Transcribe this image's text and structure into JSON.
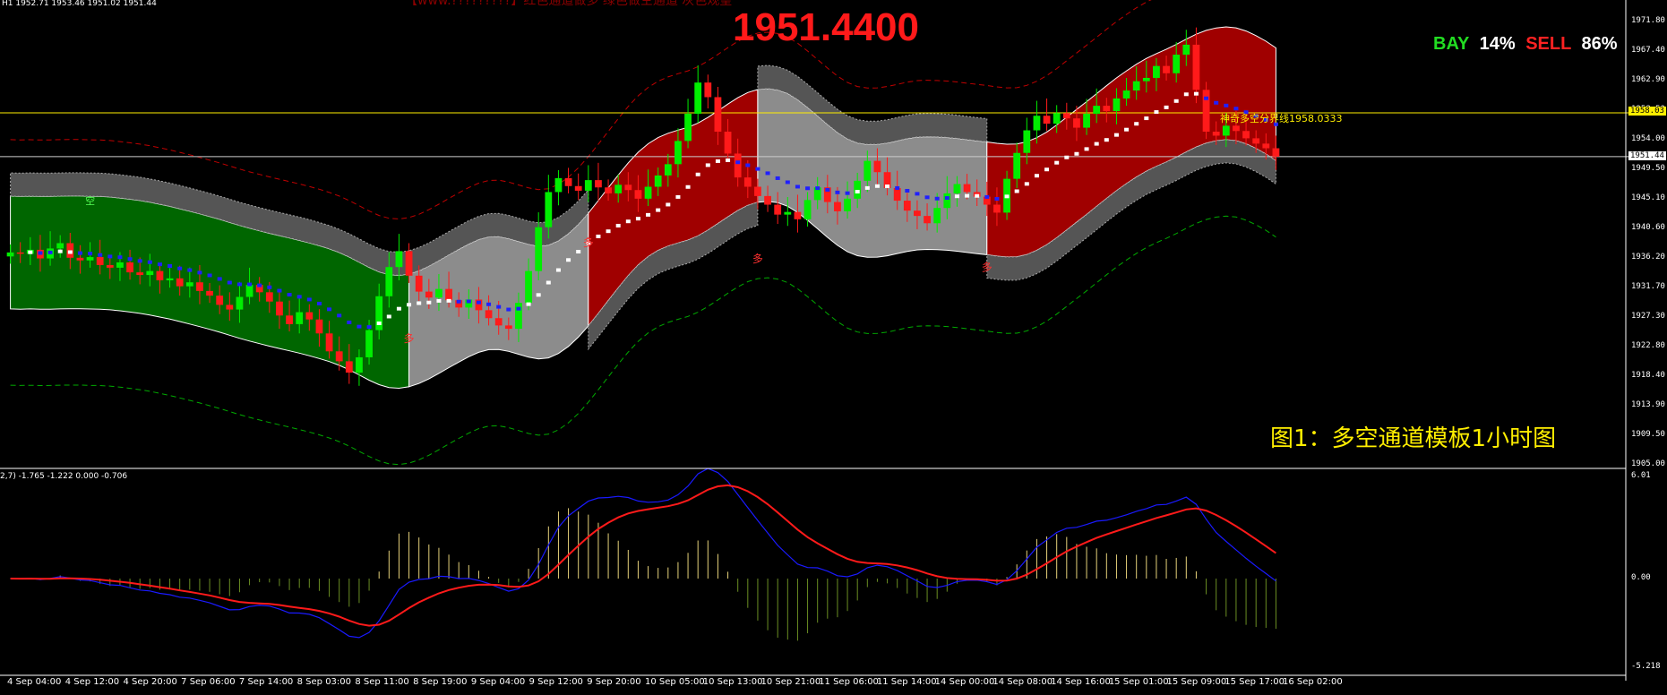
{
  "header": {
    "symbol_ohlc": "H1  1952.71 1953.46 1951.02 1951.44",
    "current_price": "1951.4400",
    "top_note": "【www.?????????】红色通道做多  绿色做空通道 灰色观望"
  },
  "sentiment": {
    "buy_label": "BAY",
    "buy_pct": "14%",
    "sell_label": "SELL",
    "sell_pct": "86%",
    "buy_color": "#22dd22",
    "sell_color": "#ff2222"
  },
  "caption": "图1：多空通道模板1小时图",
  "boundary_label": "神奇多空分界线1958.0333",
  "marks": {
    "long": "多",
    "short": "空"
  },
  "price_axis": {
    "ticks": [
      "1971.80",
      "1967.40",
      "1962.90",
      "1958.50",
      "1954.00",
      "1949.50",
      "1945.10",
      "1940.60",
      "1936.20",
      "1931.70",
      "1927.30",
      "1922.80",
      "1918.40",
      "1913.90",
      "1909.50",
      "1905.00"
    ],
    "highlight_yellow": "1958.03",
    "highlight_white": "1951.44"
  },
  "indicator": {
    "header": "2,7) -1.765 -1.222 0.000 -0.706",
    "axis_ticks": [
      "6.01",
      "0.00",
      "-5.218"
    ]
  },
  "time_axis": [
    "4 Sep 04:00",
    "4 Sep 12:00",
    "4 Sep 20:00",
    "7 Sep 06:00",
    "7 Sep 14:00",
    "8 Sep 03:00",
    "8 Sep 11:00",
    "8 Sep 19:00",
    "9 Sep 04:00",
    "9 Sep 12:00",
    "9 Sep 20:00",
    "10 Sep 05:00",
    "10 Sep 13:00",
    "10 Sep 21:00",
    "11 Sep 06:00",
    "11 Sep 14:00",
    "14 Sep 00:00",
    "14 Sep 08:00",
    "14 Sep 16:00",
    "15 Sep 01:00",
    "15 Sep 09:00",
    "15 Sep 17:00",
    "16 Sep 02:00"
  ],
  "colors": {
    "bull_channel": "#a00000",
    "bear_channel": "#006600",
    "neutral_channel": "#8c8c8c",
    "up_candle": "#00ee00",
    "down_candle": "#ff1a1a",
    "macd_signal": "#ff1a1a",
    "macd_line": "#1a1aff",
    "hist_pos": "#e6d27a",
    "hist_neg": "#6b8e23"
  },
  "chart_data": {
    "type": "candlestick",
    "timeframe": "H1",
    "ylim": [
      1905.0,
      1971.8
    ],
    "close_series": [
      1937.0,
      1936.8,
      1937.4,
      1936.1,
      1937.6,
      1938.4,
      1936.2,
      1935.8,
      1936.3,
      1935.1,
      1934.7,
      1935.5,
      1934.0,
      1933.6,
      1934.2,
      1932.8,
      1933.1,
      1931.9,
      1932.5,
      1931.2,
      1930.5,
      1929.1,
      1928.4,
      1930.3,
      1932.1,
      1931.0,
      1929.6,
      1927.5,
      1926.2,
      1928.0,
      1926.9,
      1924.8,
      1922.1,
      1920.6,
      1918.9,
      1921.2,
      1925.3,
      1930.4,
      1934.8,
      1937.2,
      1933.5,
      1931.1,
      1930.2,
      1931.5,
      1929.8,
      1928.7,
      1929.9,
      1928.3,
      1927.1,
      1926.0,
      1925.5,
      1929.4,
      1934.2,
      1940.8,
      1946.1,
      1948.2,
      1947.0,
      1946.3,
      1947.9,
      1946.8,
      1945.9,
      1947.2,
      1946.4,
      1945.1,
      1946.9,
      1948.6,
      1950.3,
      1953.8,
      1957.9,
      1962.6,
      1960.4,
      1955.2,
      1951.9,
      1948.3,
      1946.9,
      1945.5,
      1944.2,
      1942.7,
      1943.1,
      1942.0,
      1944.9,
      1946.8,
      1944.6,
      1943.2,
      1945.1,
      1947.8,
      1950.8,
      1949.1,
      1946.7,
      1944.8,
      1943.3,
      1942.5,
      1941.4,
      1943.7,
      1945.9,
      1947.3,
      1946.1,
      1945.4,
      1944.2,
      1943.0,
      1948.1,
      1952.0,
      1955.4,
      1957.6,
      1956.4,
      1958.0,
      1957.2,
      1955.8,
      1957.9,
      1959.1,
      1958.3,
      1960.2,
      1961.4,
      1962.8,
      1963.3,
      1965.1,
      1964.0,
      1966.8,
      1968.3,
      1961.5,
      1955.2,
      1954.6,
      1956.1,
      1955.3,
      1954.2,
      1953.4,
      1952.7,
      1951.44
    ],
    "channel_segments": [
      {
        "trend": "short",
        "from": "4 Sep 04:00",
        "to": "8 Sep 19:00"
      },
      {
        "trend": "neutral",
        "from": "8 Sep 19:00",
        "to": "9 Sep 20:00"
      },
      {
        "trend": "long",
        "from": "9 Sep 20:00",
        "to": "10 Sep 21:00"
      },
      {
        "trend": "neutral",
        "from": "10 Sep 21:00",
        "to": "14 Sep 08:00"
      },
      {
        "trend": "long",
        "from": "14 Sep 08:00",
        "to": "16 Sep 02:00"
      }
    ],
    "levels": {
      "boundary": 1958.0333,
      "last": 1951.44
    },
    "indicator": {
      "name": "MACD",
      "ylim": [
        -5.218,
        6.01
      ]
    }
  }
}
